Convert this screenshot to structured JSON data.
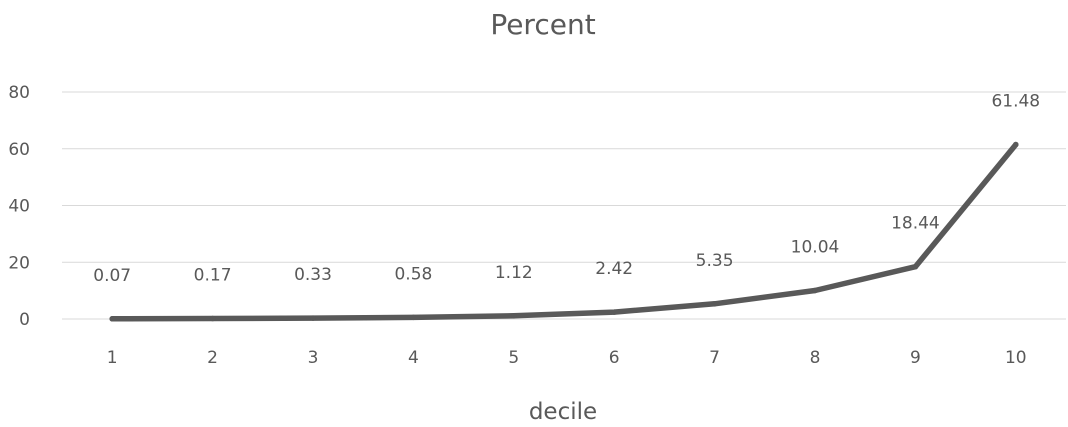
{
  "chart_data": {
    "type": "line",
    "title": "Percent",
    "xlabel": "decile",
    "ylabel": "",
    "categories": [
      "1",
      "2",
      "3",
      "4",
      "5",
      "6",
      "7",
      "8",
      "9",
      "10"
    ],
    "values": [
      0.07,
      0.17,
      0.33,
      0.58,
      1.12,
      2.42,
      5.35,
      10.04,
      18.44,
      61.48
    ],
    "data_labels": [
      "0.07",
      "0.17",
      "0.33",
      "0.58",
      "1.12",
      "2.42",
      "5.35",
      "10.04",
      "18.44",
      "61.48"
    ],
    "ylim": [
      0,
      80
    ],
    "yticks": [
      0,
      20,
      40,
      60,
      80
    ],
    "grid": "horizontal",
    "legend": "none",
    "colors": {
      "line": "#595959",
      "grid": "#d9d9d9",
      "text": "#595959"
    }
  }
}
